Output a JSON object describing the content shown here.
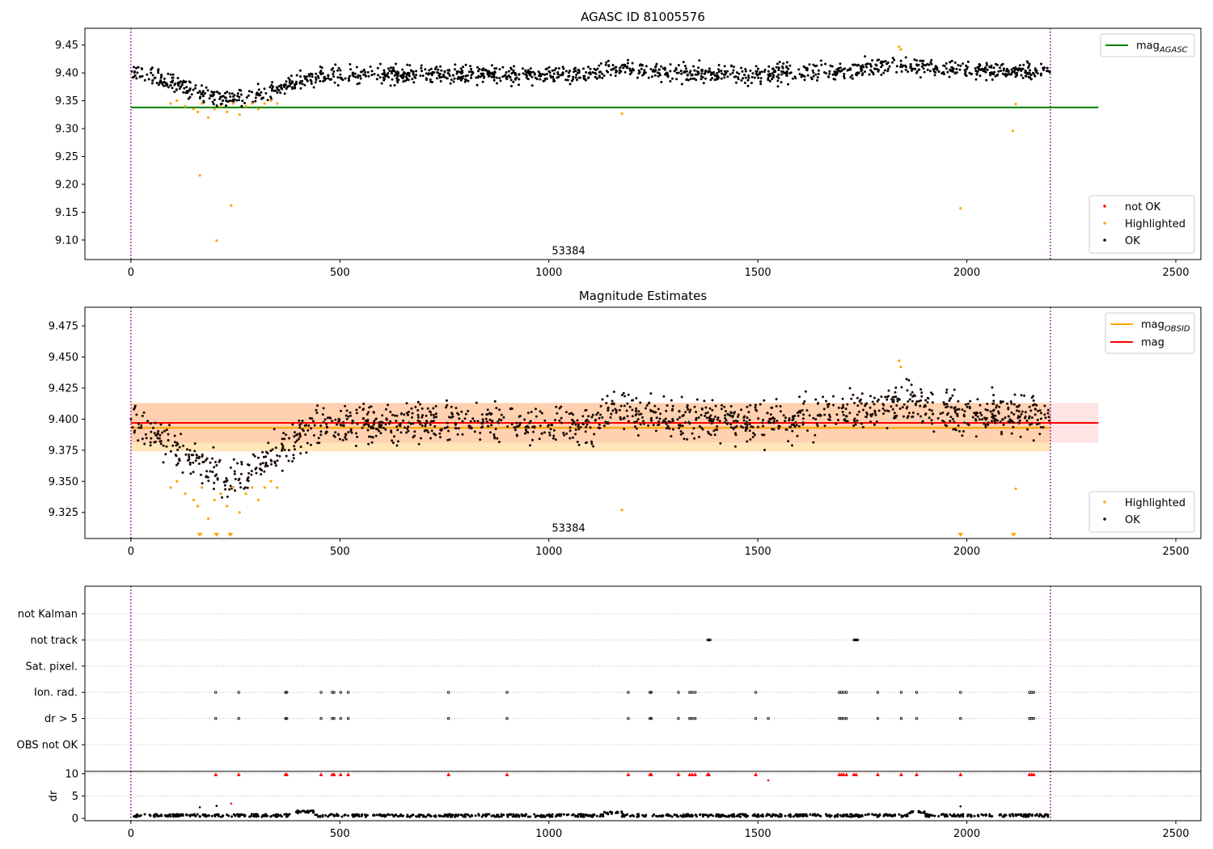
{
  "chart_data": [
    {
      "type": "scatter",
      "title": "AGASC ID 81005576",
      "xlim": [
        -110,
        2560
      ],
      "ylim": [
        9.065,
        9.48
      ],
      "xticks": [
        0,
        500,
        1000,
        1500,
        2000,
        2500
      ],
      "xtick_labels": [
        "0",
        "500",
        "1000",
        "1500",
        "2000",
        "2500"
      ],
      "yticks": [
        9.1,
        9.15,
        9.2,
        9.25,
        9.3,
        9.35,
        9.4,
        9.45
      ],
      "ytick_labels": [
        "9.10",
        "9.15",
        "9.20",
        "9.25",
        "9.30",
        "9.35",
        "9.40",
        "9.45"
      ],
      "vlines": [
        0,
        2200
      ],
      "annotation": {
        "text": "53384",
        "x": 1100,
        "y": 9.08
      },
      "hlines": [
        {
          "name": "mag",
          "subscript": "AGASC",
          "y": 9.338,
          "color": "#008000",
          "xmax": 2315
        }
      ],
      "line_legend": {
        "placement": "upper-right",
        "entries": [
          {
            "label": "mag",
            "sub": "AGASC",
            "color": "#008000"
          }
        ]
      },
      "point_legend": {
        "placement": "lower-right",
        "entries": [
          {
            "label": "not OK",
            "color": "#ff0000"
          },
          {
            "label": "Highlighted",
            "color": "#ffa500"
          },
          {
            "label": "OK",
            "color": "#000000"
          }
        ]
      },
      "series": [
        {
          "name": "Highlighted",
          "color": "#ffa500",
          "x": [
            95,
            110,
            130,
            150,
            160,
            170,
            185,
            200,
            215,
            230,
            245,
            260,
            275,
            290,
            305,
            320,
            335,
            350,
            165,
            240,
            205,
            1175,
            1985,
            2110,
            2117,
            1838,
            1842
          ],
          "y": [
            9.345,
            9.35,
            9.34,
            9.335,
            9.33,
            9.345,
            9.32,
            9.335,
            9.34,
            9.33,
            9.345,
            9.325,
            9.34,
            9.345,
            9.335,
            9.345,
            9.35,
            9.345,
            9.216,
            9.162,
            9.099,
            9.327,
            9.157,
            9.296,
            9.344,
            9.447,
            9.442
          ]
        },
        {
          "name": "OK",
          "color": "#000000",
          "profile": [
            [
              0,
              9.402
            ],
            [
              60,
              9.39
            ],
            [
              120,
              9.375
            ],
            [
              180,
              9.362
            ],
            [
              230,
              9.352
            ],
            [
              290,
              9.358
            ],
            [
              340,
              9.37
            ],
            [
              400,
              9.385
            ],
            [
              450,
              9.395
            ],
            [
              700,
              9.398
            ],
            [
              1100,
              9.395
            ],
            [
              1150,
              9.408
            ],
            [
              1300,
              9.4
            ],
            [
              1500,
              9.397
            ],
            [
              1700,
              9.405
            ],
            [
              1850,
              9.413
            ],
            [
              2000,
              9.404
            ],
            [
              2200,
              9.402
            ]
          ],
          "spread": 0.012,
          "n": 1400
        }
      ]
    },
    {
      "type": "scatter",
      "title": "Magnitude Estimates",
      "xlim": [
        -110,
        2560
      ],
      "ylim": [
        9.304,
        9.49
      ],
      "xticks": [
        0,
        500,
        1000,
        1500,
        2000,
        2500
      ],
      "xtick_labels": [
        "0",
        "500",
        "1000",
        "1500",
        "2000",
        "2500"
      ],
      "yticks": [
        9.325,
        9.35,
        9.375,
        9.4,
        9.425,
        9.45,
        9.475
      ],
      "ytick_labels": [
        "9.325",
        "9.350",
        "9.375",
        "9.400",
        "9.425",
        "9.450",
        "9.475"
      ],
      "vlines": [
        0,
        2200
      ],
      "annotation": {
        "text": "53384",
        "x": 1100,
        "y": 9.312
      },
      "hlines": [
        {
          "name": "mag",
          "subscript": "OBSID",
          "y": 9.393,
          "color": "#ffa500",
          "xmax": 2200,
          "band": [
            9.374,
            9.413
          ],
          "band_color": "#ffa500"
        },
        {
          "name": "mag",
          "y": 9.397,
          "color": "#ff0000",
          "xmax": 2315,
          "band": [
            9.381,
            9.413
          ],
          "band_color": "#ff9aa2"
        }
      ],
      "line_legend": {
        "placement": "upper-right",
        "entries": [
          {
            "label": "mag",
            "sub": "OBSID",
            "color": "#ffa500"
          },
          {
            "label": "mag",
            "sub": "",
            "color": "#ff0000"
          }
        ]
      },
      "point_legend": {
        "placement": "lower-right",
        "entries": [
          {
            "label": "Highlighted",
            "color": "#ffa500"
          },
          {
            "label": "OK",
            "color": "#000000"
          }
        ]
      },
      "markers_below": {
        "x": [
          165,
          205,
          238,
          1985,
          2112
        ],
        "color": "#ffa500"
      },
      "series": [
        {
          "name": "Highlighted",
          "color": "#ffa500",
          "x": [
            95,
            110,
            130,
            150,
            160,
            170,
            185,
            200,
            215,
            230,
            245,
            260,
            275,
            290,
            305,
            320,
            335,
            350,
            1175,
            2117,
            1838,
            1842
          ],
          "y": [
            9.345,
            9.35,
            9.34,
            9.335,
            9.33,
            9.345,
            9.32,
            9.335,
            9.34,
            9.33,
            9.345,
            9.325,
            9.34,
            9.345,
            9.335,
            9.345,
            9.35,
            9.345,
            9.327,
            9.344,
            9.447,
            9.442
          ]
        },
        {
          "name": "OK",
          "color": "#1a0a05",
          "profile": [
            [
              0,
              9.402
            ],
            [
              60,
              9.39
            ],
            [
              120,
              9.375
            ],
            [
              180,
              9.362
            ],
            [
              230,
              9.352
            ],
            [
              290,
              9.358
            ],
            [
              340,
              9.37
            ],
            [
              400,
              9.385
            ],
            [
              450,
              9.395
            ],
            [
              700,
              9.398
            ],
            [
              1100,
              9.395
            ],
            [
              1150,
              9.408
            ],
            [
              1300,
              9.4
            ],
            [
              1500,
              9.397
            ],
            [
              1700,
              9.405
            ],
            [
              1850,
              9.413
            ],
            [
              2000,
              9.404
            ],
            [
              2200,
              9.402
            ]
          ],
          "spread": 0.012,
          "n": 1400
        }
      ]
    },
    {
      "type": "scatter",
      "title": "",
      "xlim": [
        -110,
        2560
      ],
      "categories": [
        "OBS not OK",
        "dr > 5",
        "Ion. rad.",
        "Sat. pixel.",
        "not track",
        "not Kalman"
      ],
      "vlines": [
        0,
        2200
      ],
      "flags": [
        {
          "category": "not track",
          "x": [
            1380,
            1383,
            1386,
            1730,
            1733,
            1736,
            1739
          ]
        },
        {
          "category": "Ion. rad.",
          "x": [
            203,
            258,
            370,
            373,
            455,
            482,
            486,
            502,
            520,
            760,
            900,
            1190,
            1242,
            1245,
            1310,
            1337,
            1343,
            1350,
            1495,
            1695,
            1700,
            1705,
            1712,
            1787,
            1843,
            1880,
            1985,
            2150,
            2155,
            2160
          ]
        },
        {
          "category": "dr > 5",
          "x": [
            203,
            258,
            370,
            373,
            455,
            482,
            486,
            502,
            520,
            760,
            900,
            1190,
            1242,
            1245,
            1310,
            1337,
            1343,
            1350,
            1495,
            1525,
            1695,
            1700,
            1705,
            1712,
            1787,
            1843,
            1880,
            1985,
            2150,
            2155,
            2160
          ]
        }
      ]
    },
    {
      "type": "scatter",
      "title": "",
      "ylabel": "dr",
      "xlim": [
        -110,
        2560
      ],
      "ylim": [
        -0.5,
        10.5
      ],
      "xticks": [
        0,
        500,
        1000,
        1500,
        2000,
        2500
      ],
      "xtick_labels": [
        "0",
        "500",
        "1000",
        "1500",
        "2000",
        "2500"
      ],
      "yticks": [
        0,
        5,
        10
      ],
      "ytick_labels": [
        "0",
        "5",
        "10"
      ],
      "vlines": [
        0,
        2200
      ],
      "clipped": {
        "x": [
          203,
          258,
          370,
          373,
          455,
          482,
          486,
          502,
          520,
          760,
          900,
          1190,
          1242,
          1245,
          1310,
          1337,
          1343,
          1350,
          1380,
          1383,
          1495,
          1695,
          1700,
          1705,
          1712,
          1730,
          1735,
          1787,
          1843,
          1880,
          1985,
          2150,
          2155,
          2160
        ],
        "y": 9.8,
        "color": "#ff0000"
      },
      "series": [
        {
          "name": "not OK",
          "color": "#ff0000",
          "x": [
            240,
            1525
          ],
          "y": [
            3.3,
            8.5
          ]
        },
        {
          "name": "OK",
          "color": "#000000",
          "baseline": 0.6,
          "spread": 0.6,
          "n": 900,
          "x_extra": [
            165,
            205,
            1985
          ],
          "y_extra": [
            2.5,
            2.8,
            2.7
          ]
        }
      ]
    }
  ]
}
